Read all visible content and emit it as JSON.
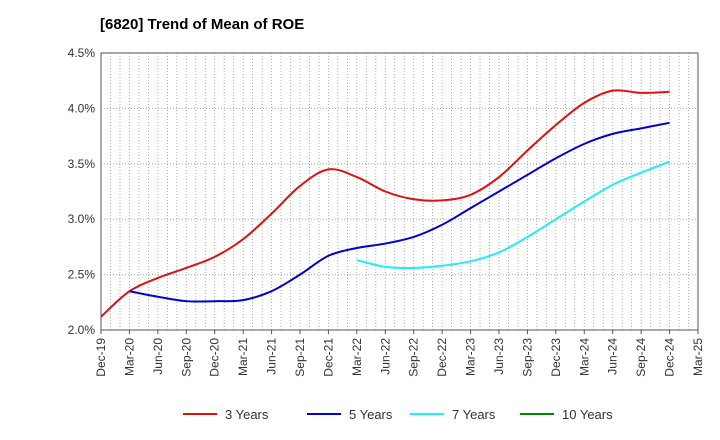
{
  "chart_data": {
    "type": "line",
    "title": "[6820]  Trend of Mean of ROE",
    "xlabel": "",
    "ylabel": "",
    "x_ticks": [
      "Dec-19",
      "Mar-20",
      "Jun-20",
      "Sep-20",
      "Dec-20",
      "Mar-21",
      "Jun-21",
      "Sep-21",
      "Dec-21",
      "Mar-22",
      "Jun-22",
      "Sep-22",
      "Dec-22",
      "Mar-23",
      "Jun-23",
      "Sep-23",
      "Dec-23",
      "Mar-24",
      "Jun-24",
      "Sep-24",
      "Dec-24",
      "Mar-25"
    ],
    "y_ticks": [
      "2.0%",
      "2.5%",
      "3.0%",
      "3.5%",
      "4.0%",
      "4.5%"
    ],
    "ylim": [
      2.0,
      4.5
    ],
    "grid": true,
    "legend_position": "bottom",
    "series": [
      {
        "name": "3 Years",
        "color": "#dd1111",
        "start_index": 0,
        "values": [
          2.12,
          2.35,
          2.47,
          2.56,
          2.66,
          2.82,
          3.05,
          3.3,
          3.45,
          3.38,
          3.25,
          3.18,
          3.17,
          3.22,
          3.38,
          3.62,
          3.85,
          4.05,
          4.16,
          4.14,
          4.15
        ]
      },
      {
        "name": "5 Years",
        "color": "#0000cc",
        "start_index": 1,
        "values": [
          2.35,
          2.3,
          2.26,
          2.26,
          2.27,
          2.35,
          2.5,
          2.67,
          2.74,
          2.78,
          2.84,
          2.95,
          3.1,
          3.25,
          3.4,
          3.55,
          3.68,
          3.77,
          3.82,
          3.87
        ]
      },
      {
        "name": "7 Years",
        "color": "#22eeee",
        "start_index": 9,
        "values": [
          2.63,
          2.57,
          2.56,
          2.58,
          2.62,
          2.7,
          2.84,
          3.0,
          3.16,
          3.31,
          3.42,
          3.52
        ]
      },
      {
        "name": "10 Years",
        "color": "#008800",
        "start_index": 0,
        "values": []
      }
    ]
  }
}
